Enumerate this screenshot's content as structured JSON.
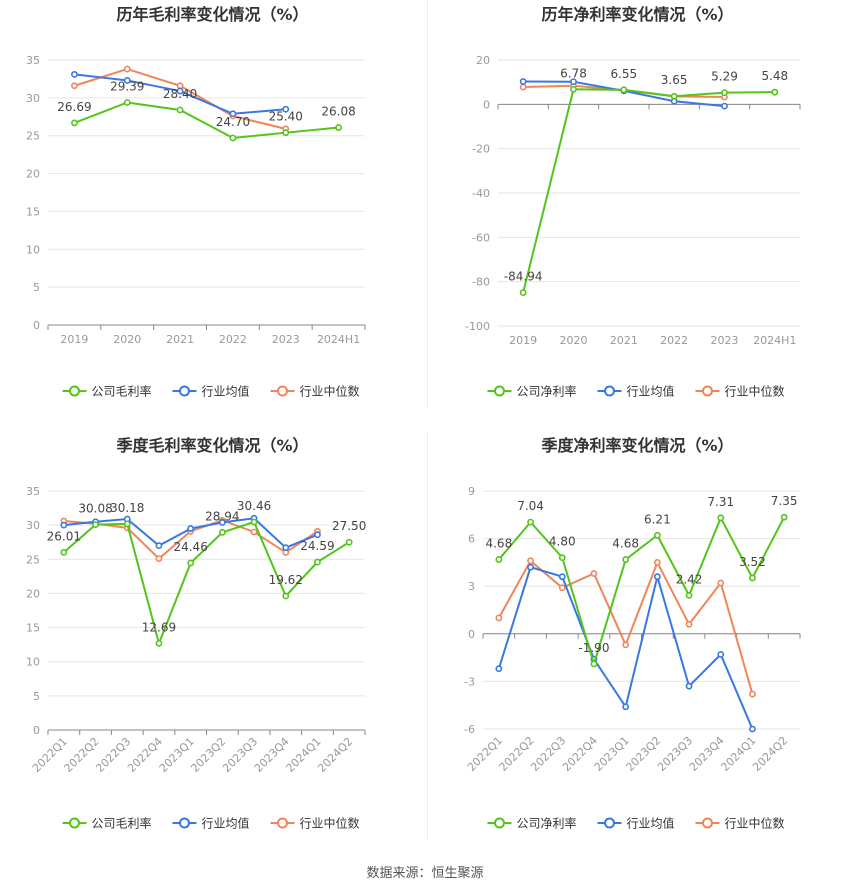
{
  "source_label": "数据来源：恒生聚源",
  "colors": {
    "company": "#52c41a",
    "industry_avg": "#3a78e0",
    "industry_median": "#f0855a",
    "grid": "#e6e6e6",
    "axis": "#999999",
    "label": "#444444"
  },
  "chart_data": [
    {
      "type": "line",
      "title": "历年毛利率变化情况（%）",
      "categories": [
        "2019",
        "2020",
        "2021",
        "2022",
        "2023",
        "2024H1"
      ],
      "ylim": [
        0,
        35
      ],
      "yticks": [
        0,
        5,
        10,
        15,
        20,
        25,
        30,
        35
      ],
      "rotate_x": false,
      "label_series": 0,
      "legend_position": "bottom-center",
      "series": [
        {
          "name": "公司毛利率",
          "values": [
            26.69,
            29.39,
            28.4,
            24.7,
            25.4,
            26.08
          ],
          "labels": [
            "26.69",
            "29.39",
            "28.40",
            "24.70",
            "25.40",
            "26.08"
          ]
        },
        {
          "name": "行业均值",
          "values": [
            33.1,
            32.3,
            30.9,
            27.9,
            28.5,
            null
          ]
        },
        {
          "name": "行业中位数",
          "values": [
            31.6,
            33.8,
            31.6,
            27.6,
            25.9,
            null
          ]
        }
      ]
    },
    {
      "type": "line",
      "title": "历年净利率变化情况（%）",
      "categories": [
        "2019",
        "2020",
        "2021",
        "2022",
        "2023",
        "2024H1"
      ],
      "ylim": [
        -100,
        20
      ],
      "yticks": [
        -100,
        -80,
        -60,
        -40,
        -20,
        0,
        20
      ],
      "rotate_x": false,
      "label_series": 0,
      "legend_position": "bottom-center",
      "series": [
        {
          "name": "公司净利率",
          "values": [
            -84.94,
            6.78,
            6.55,
            3.65,
            5.29,
            5.48
          ],
          "labels": [
            "-84.94",
            "6.78",
            "6.55",
            "3.65",
            "5.29",
            "5.48"
          ]
        },
        {
          "name": "行业均值",
          "values": [
            10.3,
            10.2,
            6.1,
            1.4,
            -0.8,
            null
          ]
        },
        {
          "name": "行业中位数",
          "values": [
            7.8,
            8.4,
            6.4,
            3.6,
            3.3,
            null
          ]
        }
      ]
    },
    {
      "type": "line",
      "title": "季度毛利率变化情况（%）",
      "categories": [
        "2022Q1",
        "2022Q2",
        "2022Q3",
        "2022Q4",
        "2023Q1",
        "2023Q2",
        "2023Q3",
        "2023Q4",
        "2024Q1",
        "2024Q2"
      ],
      "ylim": [
        0,
        35
      ],
      "yticks": [
        0,
        5,
        10,
        15,
        20,
        25,
        30,
        35
      ],
      "rotate_x": true,
      "label_series": 0,
      "legend_position": "bottom-center",
      "series": [
        {
          "name": "公司毛利率",
          "values": [
            26.01,
            30.08,
            30.18,
            12.69,
            24.46,
            28.94,
            30.46,
            19.62,
            24.59,
            27.5
          ],
          "labels": [
            "26.01",
            "30.08",
            "30.18",
            "12.69",
            "24.46",
            "28.94",
            "30.46",
            "19.62",
            "24.59",
            "27.50"
          ]
        },
        {
          "name": "行业均值",
          "values": [
            30.0,
            30.5,
            30.9,
            27.0,
            29.5,
            30.4,
            31.0,
            26.7,
            28.6,
            null
          ]
        },
        {
          "name": "行业中位数",
          "values": [
            30.6,
            30.2,
            29.6,
            25.1,
            29.1,
            30.7,
            29.0,
            26.0,
            29.1,
            null
          ]
        }
      ]
    },
    {
      "type": "line",
      "title": "季度净利率变化情况（%）",
      "categories": [
        "2022Q1",
        "2022Q2",
        "2022Q3",
        "2022Q4",
        "2023Q1",
        "2023Q2",
        "2023Q3",
        "2023Q4",
        "2024Q1",
        "2024Q2"
      ],
      "ylim": [
        -6,
        9
      ],
      "yticks": [
        -6,
        -3,
        0,
        3,
        6,
        9
      ],
      "rotate_x": true,
      "label_series": 0,
      "legend_position": "bottom-center",
      "series": [
        {
          "name": "公司净利率",
          "values": [
            4.68,
            7.04,
            4.8,
            -1.9,
            4.68,
            6.21,
            2.42,
            7.31,
            3.52,
            7.35
          ],
          "labels": [
            "4.68",
            "7.04",
            "4.80",
            "-1.90",
            "4.68",
            "6.21",
            "2.42",
            "7.31",
            "3.52",
            "7.35"
          ]
        },
        {
          "name": "行业均值",
          "values": [
            -2.2,
            4.2,
            3.6,
            -1.6,
            -4.6,
            3.6,
            -3.3,
            -1.3,
            -6.0,
            null
          ]
        },
        {
          "name": "行业中位数",
          "values": [
            1.0,
            4.6,
            2.9,
            3.8,
            -0.7,
            4.5,
            0.6,
            3.2,
            -3.8,
            null
          ]
        }
      ]
    }
  ]
}
